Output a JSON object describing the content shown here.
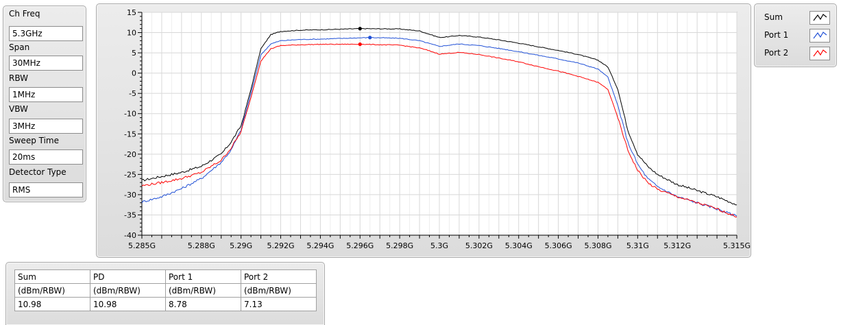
{
  "settings": [
    {
      "label": "Ch Freq",
      "value": "5.3GHz"
    },
    {
      "label": "Span",
      "value": "30MHz"
    },
    {
      "label": "RBW",
      "value": "1MHz"
    },
    {
      "label": "VBW",
      "value": "3MHz"
    },
    {
      "label": "Sweep Time",
      "value": "20ms"
    },
    {
      "label": "Detector Type",
      "value": "RMS"
    }
  ],
  "legend": [
    {
      "name": "Sum",
      "color": "#000000"
    },
    {
      "name": "Port 1",
      "color": "#1f4fd6"
    },
    {
      "name": "Port 2",
      "color": "#ff0000"
    }
  ],
  "table": {
    "headers": [
      "Sum",
      "PD",
      "Port 1",
      "Port 2"
    ],
    "units": [
      "(dBm/RBW)",
      "(dBm/RBW)",
      "(dBm/RBW)",
      "(dBm/RBW)"
    ],
    "values": [
      "10.98",
      "10.98",
      "8.78",
      "7.13"
    ]
  },
  "chart_data": {
    "type": "line",
    "xlim": [
      5.285,
      5.315
    ],
    "ylim": [
      -40,
      15
    ],
    "grid": true,
    "x_ticks": [
      5.285,
      5.288,
      5.29,
      5.292,
      5.294,
      5.296,
      5.298,
      5.3,
      5.302,
      5.304,
      5.306,
      5.308,
      5.31,
      5.312,
      5.315
    ],
    "x_tick_labels": [
      "5.285G",
      "5.288G",
      "5.29G",
      "5.292G",
      "5.294G",
      "5.296G",
      "5.298G",
      "5.3G",
      "5.302G",
      "5.304G",
      "5.306G",
      "5.308G",
      "5.31G",
      "5.312G",
      "5.315G"
    ],
    "y_ticks": [
      15,
      10,
      5,
      0,
      -5,
      -10,
      -15,
      -20,
      -25,
      -30,
      -35,
      -40
    ],
    "series": [
      {
        "name": "Sum",
        "color": "#000000",
        "points": [
          [
            5.285,
            -26.5
          ],
          [
            5.286,
            -25.5
          ],
          [
            5.287,
            -24.5
          ],
          [
            5.288,
            -23
          ],
          [
            5.289,
            -20
          ],
          [
            5.2895,
            -17
          ],
          [
            5.29,
            -13
          ],
          [
            5.2905,
            -4
          ],
          [
            5.291,
            6
          ],
          [
            5.2915,
            9.5
          ],
          [
            5.292,
            10.3
          ],
          [
            5.293,
            10.6
          ],
          [
            5.294,
            10.7
          ],
          [
            5.296,
            10.98
          ],
          [
            5.298,
            10.9
          ],
          [
            5.299,
            10.4
          ],
          [
            5.2995,
            9.6
          ],
          [
            5.3,
            8.8
          ],
          [
            5.3005,
            9.0
          ],
          [
            5.301,
            9.3
          ],
          [
            5.302,
            8.9
          ],
          [
            5.303,
            8.2
          ],
          [
            5.304,
            7.4
          ],
          [
            5.305,
            6.5
          ],
          [
            5.306,
            5.6
          ],
          [
            5.307,
            4.6
          ],
          [
            5.308,
            3.2
          ],
          [
            5.3085,
            1.5
          ],
          [
            5.309,
            -4
          ],
          [
            5.3095,
            -14
          ],
          [
            5.31,
            -20
          ],
          [
            5.3105,
            -23
          ],
          [
            5.311,
            -25
          ],
          [
            5.312,
            -27.5
          ],
          [
            5.313,
            -29
          ],
          [
            5.314,
            -30.5
          ],
          [
            5.315,
            -32.5
          ]
        ]
      },
      {
        "name": "Port 1",
        "color": "#1f4fd6",
        "points": [
          [
            5.285,
            -31.8
          ],
          [
            5.286,
            -30.5
          ],
          [
            5.287,
            -28.5
          ],
          [
            5.288,
            -26
          ],
          [
            5.289,
            -22
          ],
          [
            5.2895,
            -19
          ],
          [
            5.29,
            -14
          ],
          [
            5.2905,
            -5
          ],
          [
            5.291,
            4.5
          ],
          [
            5.2915,
            7.2
          ],
          [
            5.292,
            8.0
          ],
          [
            5.293,
            8.3
          ],
          [
            5.294,
            8.4
          ],
          [
            5.2965,
            8.78
          ],
          [
            5.298,
            8.6
          ],
          [
            5.299,
            8.0
          ],
          [
            5.2995,
            7.3
          ],
          [
            5.3,
            6.6
          ],
          [
            5.3005,
            6.9
          ],
          [
            5.301,
            7.2
          ],
          [
            5.302,
            6.8
          ],
          [
            5.303,
            6.1
          ],
          [
            5.304,
            5.3
          ],
          [
            5.305,
            4.4
          ],
          [
            5.306,
            3.5
          ],
          [
            5.307,
            2.5
          ],
          [
            5.308,
            1.0
          ],
          [
            5.3085,
            -1
          ],
          [
            5.309,
            -8
          ],
          [
            5.3095,
            -17
          ],
          [
            5.31,
            -22.5
          ],
          [
            5.3105,
            -26
          ],
          [
            5.311,
            -28
          ],
          [
            5.312,
            -30.5
          ],
          [
            5.313,
            -32
          ],
          [
            5.314,
            -33.5
          ],
          [
            5.315,
            -35.3
          ]
        ]
      },
      {
        "name": "Port 2",
        "color": "#ff0000",
        "points": [
          [
            5.285,
            -27.8
          ],
          [
            5.286,
            -27
          ],
          [
            5.287,
            -26
          ],
          [
            5.288,
            -24.5
          ],
          [
            5.289,
            -21.5
          ],
          [
            5.2895,
            -18.5
          ],
          [
            5.29,
            -14.5
          ],
          [
            5.2905,
            -6
          ],
          [
            5.291,
            3
          ],
          [
            5.2915,
            6.0
          ],
          [
            5.292,
            6.8
          ],
          [
            5.293,
            7.0
          ],
          [
            5.294,
            7.1
          ],
          [
            5.296,
            7.13
          ],
          [
            5.298,
            6.9
          ],
          [
            5.299,
            6.2
          ],
          [
            5.2995,
            5.5
          ],
          [
            5.3,
            4.7
          ],
          [
            5.3005,
            4.9
          ],
          [
            5.301,
            5.1
          ],
          [
            5.302,
            4.6
          ],
          [
            5.303,
            3.7
          ],
          [
            5.304,
            2.8
          ],
          [
            5.305,
            1.6
          ],
          [
            5.306,
            0.5
          ],
          [
            5.307,
            -0.8
          ],
          [
            5.308,
            -2.3
          ],
          [
            5.3085,
            -4
          ],
          [
            5.309,
            -11
          ],
          [
            5.3095,
            -19
          ],
          [
            5.31,
            -24
          ],
          [
            5.3105,
            -27
          ],
          [
            5.311,
            -28.7
          ],
          [
            5.312,
            -30.5
          ],
          [
            5.313,
            -32
          ],
          [
            5.314,
            -33.5
          ],
          [
            5.315,
            -35.5
          ]
        ]
      }
    ],
    "markers": [
      {
        "series": "Sum",
        "x": 5.296,
        "y": 10.98
      },
      {
        "series": "Port 1",
        "x": 5.2965,
        "y": 8.78
      },
      {
        "series": "Port 2",
        "x": 5.296,
        "y": 7.13
      }
    ]
  }
}
